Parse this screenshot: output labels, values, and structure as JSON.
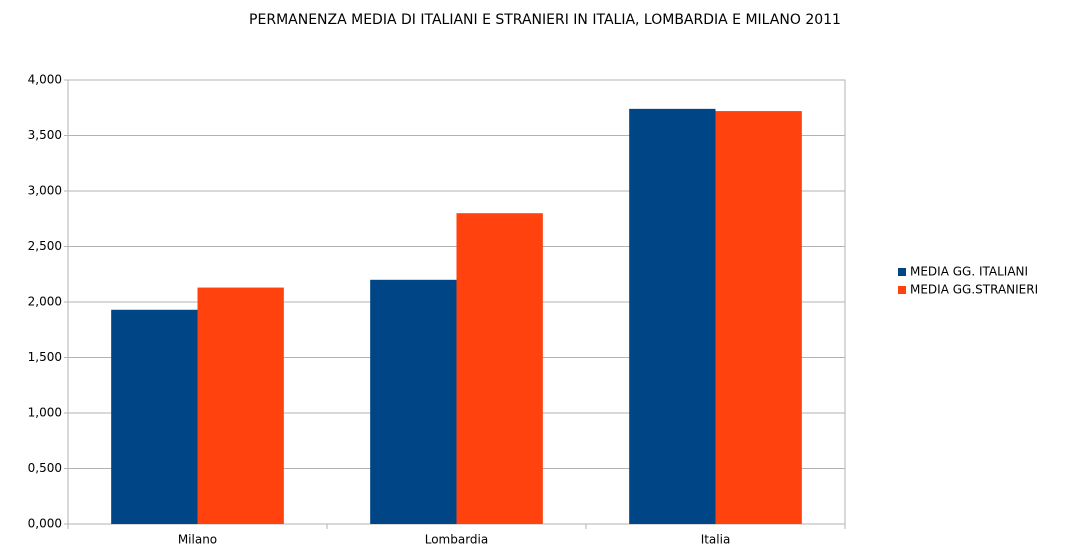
{
  "chart_data": {
    "type": "bar",
    "title": "PERMANENZA MEDIA DI ITALIANI E STRANIERI IN ITALIA, LOMBARDIA E MILANO 2011",
    "categories": [
      "Milano",
      "Lombardia",
      "Italia"
    ],
    "series": [
      {
        "name": "MEDIA GG. ITALIANI",
        "color": "#004586",
        "values": [
          1.93,
          2.2,
          3.74
        ]
      },
      {
        "name": "MEDIA GG.STRANIERI",
        "color": "#ff420e",
        "values": [
          2.13,
          2.8,
          3.72
        ]
      }
    ],
    "ylim": [
      0,
      4
    ],
    "yticks": [
      {
        "value": 0,
        "label": "0,000"
      },
      {
        "value": 0.5,
        "label": "0,500"
      },
      {
        "value": 1,
        "label": "1,000"
      },
      {
        "value": 1.5,
        "label": "1,500"
      },
      {
        "value": 2,
        "label": "2,000"
      },
      {
        "value": 2.5,
        "label": "2,500"
      },
      {
        "value": 3,
        "label": "3,000"
      },
      {
        "value": 3.5,
        "label": "3,500"
      },
      {
        "value": 4,
        "label": "4,000"
      }
    ],
    "grid": true,
    "legend": "right"
  }
}
